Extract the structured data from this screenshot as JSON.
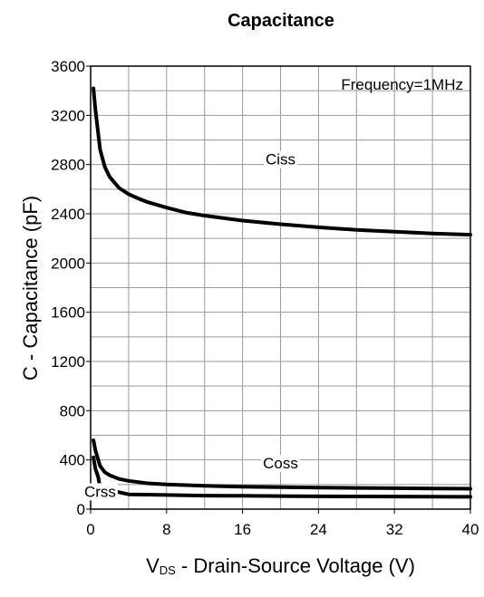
{
  "chart_data": {
    "type": "line",
    "title": "Capacitance",
    "xlabel": {
      "main": "V",
      "sub": "DS",
      "rest": " - Drain-Source Voltage (V)"
    },
    "ylabel": "C - Capacitance (pF)",
    "xlim": [
      0,
      40
    ],
    "ylim": [
      0,
      3600
    ],
    "x_ticks": [
      0,
      8,
      16,
      24,
      32,
      40
    ],
    "y_ticks": [
      0,
      400,
      800,
      1200,
      1600,
      2000,
      2400,
      2800,
      3200,
      3600
    ],
    "x_minor_step": 4,
    "y_minor_step": 200,
    "grid": true,
    "annotation": "Frequency=1MHz",
    "series": [
      {
        "name": "Ciss",
        "label_at": [
          20,
          2800
        ],
        "x": [
          0.3,
          0.5,
          0.8,
          1,
          1.5,
          2,
          3,
          4,
          5,
          6,
          8,
          10,
          12,
          16,
          20,
          24,
          28,
          32,
          36,
          40
        ],
        "y": [
          3420,
          3250,
          3050,
          2920,
          2780,
          2700,
          2610,
          2560,
          2525,
          2495,
          2450,
          2410,
          2385,
          2345,
          2315,
          2290,
          2270,
          2255,
          2240,
          2230
        ]
      },
      {
        "name": "Coss",
        "label_at": [
          20,
          330
        ],
        "x": [
          0.3,
          0.5,
          0.8,
          1,
          1.5,
          2,
          3,
          4,
          6,
          8,
          12,
          16,
          20,
          24,
          28,
          32,
          36,
          40
        ],
        "y": [
          560,
          480,
          400,
          350,
          300,
          275,
          245,
          230,
          210,
          200,
          190,
          182,
          178,
          175,
          172,
          170,
          168,
          166
        ]
      },
      {
        "name": "Crss",
        "label_at": [
          1,
          100
        ],
        "x": [
          0.3,
          0.5,
          0.8,
          1,
          4,
          8,
          12,
          16,
          20,
          24,
          28,
          32,
          36,
          40
        ],
        "y": [
          420,
          330,
          260,
          170,
          120,
          115,
          110,
          108,
          106,
          104,
          103,
          102,
          101,
          100
        ]
      }
    ]
  }
}
